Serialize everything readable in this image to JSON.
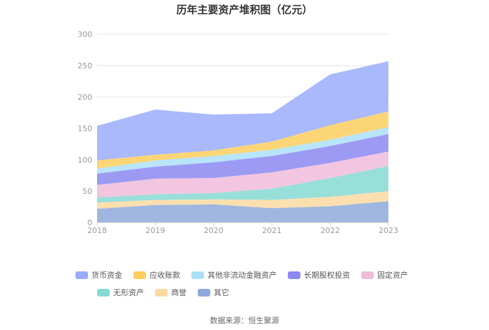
{
  "chart_data": {
    "type": "area",
    "stacked": true,
    "title": "历年主要资产堆积图（亿元）",
    "categories": [
      "2018",
      "2019",
      "2020",
      "2021",
      "2022",
      "2023"
    ],
    "ylim": [
      0,
      300
    ],
    "yticks": [
      "0",
      "50",
      "100",
      "150",
      "200",
      "250",
      "300"
    ],
    "series": [
      {
        "name": "其它",
        "color": "#8eaadb",
        "values": [
          22,
          28,
          29,
          23,
          26,
          34
        ]
      },
      {
        "name": "商誉",
        "color": "#fcd9a0",
        "values": [
          10,
          8,
          8,
          13,
          15,
          16
        ]
      },
      {
        "name": "无形资产",
        "color": "#86d9d3",
        "values": [
          8,
          9,
          10,
          18,
          30,
          40
        ]
      },
      {
        "name": "固定资产",
        "color": "#f0bcdc",
        "values": [
          20,
          25,
          24,
          26,
          24,
          23
        ]
      },
      {
        "name": "长期股权投资",
        "color": "#8c88f2",
        "values": [
          18,
          19,
          25,
          26,
          27,
          28
        ]
      },
      {
        "name": "其他非流动金融资产",
        "color": "#ace0f8",
        "values": [
          8,
          10,
          10,
          10,
          10,
          11
        ]
      },
      {
        "name": "应收账款",
        "color": "#fcce5e",
        "values": [
          13,
          9,
          9,
          13,
          23,
          25
        ]
      },
      {
        "name": "货币资金",
        "color": "#9aadfb",
        "values": [
          55,
          72,
          57,
          45,
          81,
          80
        ]
      }
    ],
    "legend_position": "bottom"
  },
  "footer": {
    "source": "数据来源：恒生聚源"
  }
}
